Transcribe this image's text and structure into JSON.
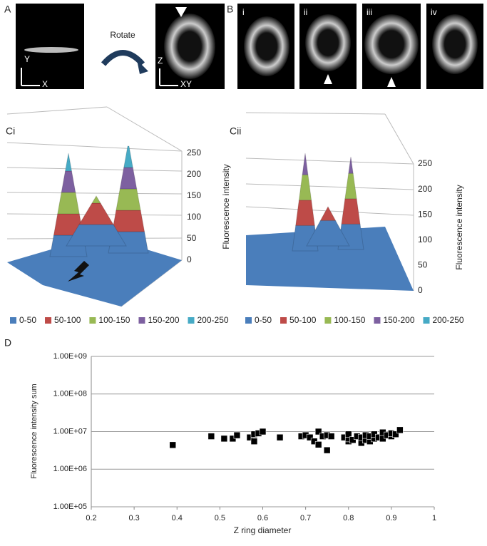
{
  "panel_a": {
    "label": "A",
    "rotate": "Rotate",
    "axis_y": "Y",
    "axis_x": "X",
    "axis_z": "Z",
    "axis_xy": "XY"
  },
  "panel_b": {
    "label": "B",
    "images": [
      "i",
      "ii",
      "iii",
      "iv"
    ]
  },
  "legend": [
    {
      "name": "0-50",
      "color": "#4a7ebb"
    },
    {
      "name": "50-100",
      "color": "#be4b48"
    },
    {
      "name": "100-150",
      "color": "#98b954"
    },
    {
      "name": "150-200",
      "color": "#7d60a0"
    },
    {
      "name": "200-250",
      "color": "#46aac5"
    }
  ],
  "surface_plots": [
    {
      "label": "Ci",
      "z_label": "Fluorescence intensity",
      "zticks": [
        0,
        50,
        100,
        150,
        200,
        250
      ],
      "zlim": [
        0,
        250
      ]
    },
    {
      "label": "Cii",
      "z_label": "Fluorescence intensity",
      "zticks": [
        0,
        50,
        100,
        150,
        200,
        250
      ],
      "zlim": [
        0,
        250
      ]
    }
  ],
  "chart_data": {
    "type": "scatter",
    "panel_label": "D",
    "x_label": "Z ring diameter",
    "y_label": "Fluorescence intensity sum",
    "log_y": true,
    "grid": true,
    "color": "#000000",
    "xlim": [
      0.2,
      1
    ],
    "xticks": [
      0.2,
      0.3,
      0.4,
      0.5,
      0.6,
      0.7,
      0.8,
      0.9,
      1
    ],
    "ylim": [
      100000,
      1000000000
    ],
    "yticks": [
      {
        "value": 100000,
        "label": "1.00E+05"
      },
      {
        "value": 1000000,
        "label": "1.00E+06"
      },
      {
        "value": 10000000,
        "label": "1.00E+07"
      },
      {
        "value": 100000000,
        "label": "1.00E+08"
      },
      {
        "value": 1000000000,
        "label": "1.00E+09"
      }
    ],
    "x": [
      0.39,
      0.48,
      0.51,
      0.53,
      0.54,
      0.57,
      0.58,
      0.58,
      0.59,
      0.6,
      0.64,
      0.69,
      0.7,
      0.71,
      0.72,
      0.73,
      0.73,
      0.74,
      0.75,
      0.75,
      0.76,
      0.79,
      0.8,
      0.8,
      0.8,
      0.81,
      0.82,
      0.83,
      0.83,
      0.84,
      0.84,
      0.85,
      0.85,
      0.86,
      0.86,
      0.87,
      0.88,
      0.88,
      0.89,
      0.9,
      0.9,
      0.91,
      0.92
    ],
    "values": [
      4400000,
      7500000,
      6500000,
      6500000,
      8000000,
      7000000,
      5500000,
      8500000,
      9000000,
      10000000,
      7000000,
      7500000,
      8000000,
      7000000,
      5500000,
      4500000,
      10000000,
      7500000,
      3200000,
      8000000,
      7500000,
      7000000,
      5500000,
      6500000,
      8500000,
      6000000,
      7500000,
      5000000,
      7000000,
      6000000,
      8000000,
      5500000,
      7500000,
      6500000,
      8500000,
      7000000,
      9500000,
      6500000,
      8000000,
      7500000,
      9000000,
      8500000,
      11000000
    ]
  }
}
